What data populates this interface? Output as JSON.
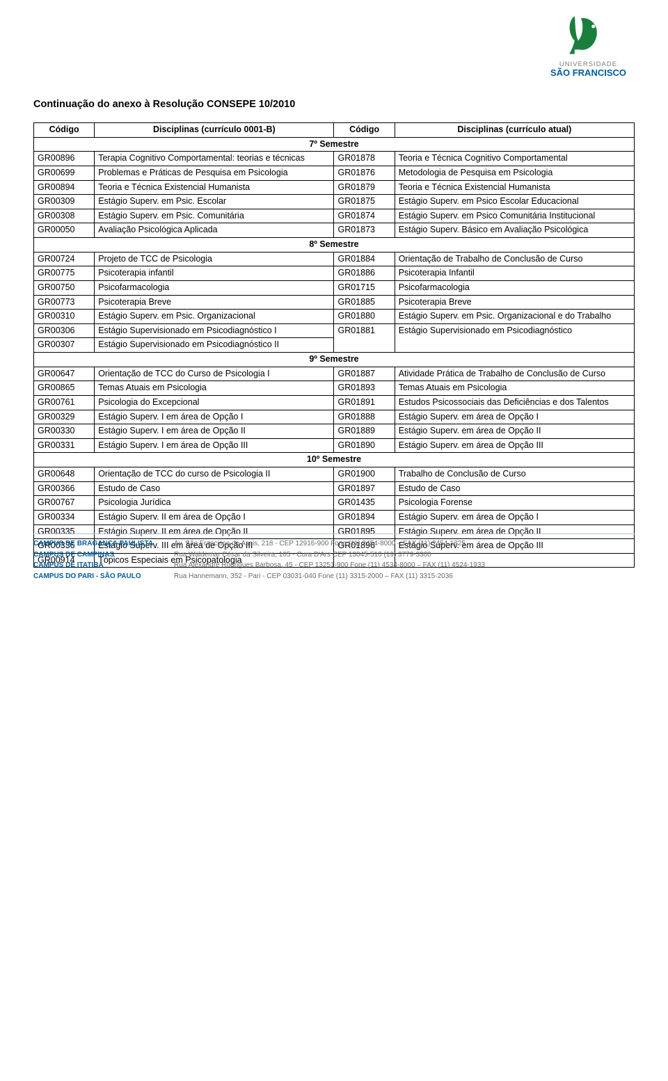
{
  "colors": {
    "brand_blue": "#005d9e",
    "brand_green": "#1a7f3c",
    "text": "#000000",
    "footer_rule": "#b0c4d8",
    "footer_grey": "#6a6a6a",
    "uni_grey": "#7a7a7a"
  },
  "logo": {
    "uni_label": "UNIVERSIDADE",
    "name": "SÃO FRANCISCO"
  },
  "continuation_title": "Continuação do anexo à Resolução CONSEPE 10/2010",
  "headers": {
    "code1": "Código",
    "disc1": "Disciplinas (currículo 0001-B)",
    "code2": "Código",
    "disc2": "Disciplinas (currículo atual)"
  },
  "semesters": [
    {
      "label": "7º Semestre",
      "rows": [
        {
          "c1": "GR00896",
          "d1": "Terapia Cognitivo Comportamental: teorias e técnicas",
          "c2": "GR01878",
          "d2": "Teoria e Técnica Cognitivo Comportamental"
        },
        {
          "c1": "GR00699",
          "d1": "Problemas e Práticas de Pesquisa em Psicologia",
          "c2": "GR01876",
          "d2": "Metodologia de Pesquisa em Psicologia"
        },
        {
          "c1": "GR00894",
          "d1": "Teoria e Técnica Existencial Humanista",
          "c2": "GR01879",
          "d2": "Teoria e Técnica Existencial Humanista"
        },
        {
          "c1": "GR00309",
          "d1": "Estágio Superv. em Psic. Escolar",
          "c2": "GR01875",
          "d2": "Estágio Superv. em Psico Escolar Educacional"
        },
        {
          "c1": "GR00308",
          "d1": "Estágio Superv. em Psic. Comunitária",
          "c2": "GR01874",
          "d2": "Estágio Superv. em Psico Comunitária Institucional"
        },
        {
          "c1": "GR00050",
          "d1": "Avaliação Psicológica Aplicada",
          "c2": "GR01873",
          "d2": "Estágio Superv. Básico em Avaliação Psicológica"
        }
      ]
    },
    {
      "label": "8º Semestre",
      "rows": [
        {
          "c1": "GR00724",
          "d1": "Projeto de TCC de Psicologia",
          "c2": "GR01884",
          "d2": "Orientação de Trabalho de Conclusão de Curso"
        },
        {
          "c1": "GR00775",
          "d1": "Psicoterapia infantil",
          "c2": "GR01886",
          "d2": "Psicoterapia Infantil"
        },
        {
          "c1": "GR00750",
          "d1": "Psicofarmacologia",
          "c2": "GR01715",
          "d2": "Psicofarmacologia"
        },
        {
          "c1": "GR00773",
          "d1": "Psicoterapia Breve",
          "c2": "GR01885",
          "d2": "Psicoterapia Breve"
        },
        {
          "c1": "GR00310",
          "d1": "Estágio Superv. em Psic. Organizacional",
          "c2": "GR01880",
          "d2": "Estágio Superv. em Psic. Organizacional e do Trabalho"
        },
        {
          "c1": "GR00306",
          "d1": "Estágio Supervisionado em Psicodiagnóstico I",
          "c2": "GR01881",
          "d2": "Estágio Supervisionado em Psicodiagnóstico",
          "rowspan": 2
        },
        {
          "c1": "GR00307",
          "d1": "Estágio Supervisionado em Psicodiagnóstico II"
        }
      ]
    },
    {
      "label": "9º Semestre",
      "rows": [
        {
          "c1": "GR00647",
          "d1": "Orientação de TCC do Curso de Psicologia I",
          "c2": "GR01887",
          "d2": "Atividade Prática de Trabalho de Conclusão de Curso"
        },
        {
          "c1": "GR00865",
          "d1": "Temas Atuais em Psicologia",
          "c2": "GR01893",
          "d2": "Temas Atuais em Psicologia"
        },
        {
          "c1": "GR00761",
          "d1": "Psicologia do Excepcional",
          "c2": "GR01891",
          "d2": "Estudos Psicossociais das Deficiências e dos Talentos"
        },
        {
          "c1": "GR00329",
          "d1": "Estágio Superv. I em área de Opção I",
          "c2": "GR01888",
          "d2": "Estágio Superv. em área de Opção I"
        },
        {
          "c1": "GR00330",
          "d1": "Estágio Superv. I em área de Opção II",
          "c2": "GR01889",
          "d2": "Estágio Superv. em área de Opção II"
        },
        {
          "c1": "GR00331",
          "d1": "Estágio Superv. I em área de Opção III",
          "c2": "GR01890",
          "d2": "Estágio Superv. em área de Opção III"
        }
      ]
    },
    {
      "label": "10º Semestre",
      "rows": [
        {
          "c1": "GR00648",
          "d1": "Orientação de TCC do curso de Psicologia II",
          "c2": "GR01900",
          "d2": "Trabalho de Conclusão de Curso"
        },
        {
          "c1": "GR00366",
          "d1": "Estudo de Caso",
          "c2": "GR01897",
          "d2": "Estudo de Caso"
        },
        {
          "c1": "GR00767",
          "d1": "Psicologia Jurídica",
          "c2": "GR01435",
          "d2": "Psicologia Forense"
        },
        {
          "c1": "GR00334",
          "d1": "Estágio Superv. II em área de Opção I",
          "c2": "GR01894",
          "d2": "Estágio Superv. em área de Opção I"
        },
        {
          "c1": "GR00335",
          "d1": "Estágio Superv. II em área de Opção II",
          "c2": "GR01895",
          "d2": "Estágio Superv. em área de Opção II"
        },
        {
          "c1": "GR00336",
          "d1": "Estágio Superv. III em área de Opção III",
          "c2": "GR01896",
          "d2": "Estágio Superv. em área de Opção III"
        },
        {
          "c1": "GR00914",
          "d1": "Tópicos Especiais em Psicopatologia",
          "c2": "",
          "d2": ""
        }
      ]
    }
  ],
  "footer": [
    {
      "campus": "CAMPUS DE BRAGANÇA PAULISTA",
      "addr": "Av. São Francisco de Assis, 218 - CEP 12916-900  Fone (11) 2454-8000 – FAX (11) 2454-1825"
    },
    {
      "campus": "CAMPUS DE CAMPINAS",
      "addr": "Rua Waldemar César da Silveira, 105 - Cura D'Ars  CEP 13045-510  (19) 3779-3300"
    },
    {
      "campus": "CAMPUS DE ITATIBA",
      "addr": "Rua Alexandre Rodrigues Barbosa, 45 - CEP 13251-900  Fone (11) 4534-8000 – FAX (11) 4524-1933"
    },
    {
      "campus": "CAMPUS DO PARI - SÃO PAULO",
      "addr": "Rua Hannemann, 352 - Pari - CEP 03031-040  Fone (11) 3315-2000 – FAX (11) 3315-2036"
    }
  ]
}
